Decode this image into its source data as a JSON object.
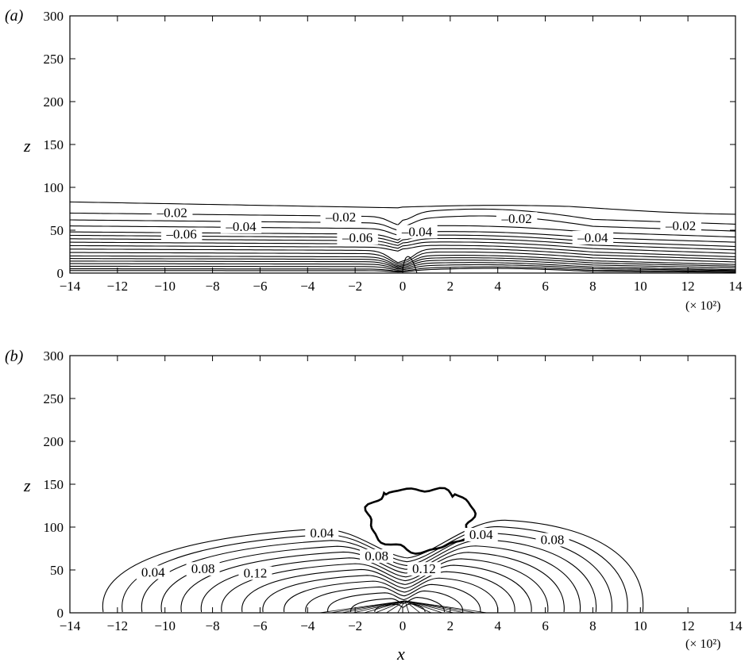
{
  "chart_data": [
    {
      "type": "contour",
      "panel_label": "(a)",
      "xlabel": "",
      "ylabel": "z",
      "x_multiplier": "(× 10²)",
      "xlim": [
        -14,
        14
      ],
      "ylim": [
        0,
        300
      ],
      "xticks": [
        -14,
        -12,
        -10,
        -8,
        -6,
        -4,
        -2,
        0,
        2,
        4,
        6,
        8,
        10,
        12,
        14
      ],
      "yticks": [
        0,
        50,
        100,
        150,
        200,
        250,
        300
      ],
      "contour_labels": [
        {
          "text": "–0.02",
          "x": -9.7,
          "z": 67
        },
        {
          "text": "–0.04",
          "x": -6.8,
          "z": 51
        },
        {
          "text": "–0.06",
          "x": -9.3,
          "z": 42
        },
        {
          "text": "–0.02",
          "x": -2.6,
          "z": 62
        },
        {
          "text": "–0.04",
          "x": 0.6,
          "z": 45
        },
        {
          "text": "–0.06",
          "x": -1.9,
          "z": 38
        },
        {
          "text": "–0.02",
          "x": 4.8,
          "z": 60
        },
        {
          "text": "–0.04",
          "x": 8.0,
          "z": 38
        },
        {
          "text": "–0.02",
          "x": 11.7,
          "z": 52
        }
      ]
    },
    {
      "type": "contour",
      "panel_label": "(b)",
      "xlabel": "x",
      "ylabel": "z",
      "x_multiplier": "(× 10²)",
      "xlim": [
        -14,
        14
      ],
      "ylim": [
        0,
        300
      ],
      "xticks": [
        -14,
        -12,
        -10,
        -8,
        -6,
        -4,
        -2,
        0,
        2,
        4,
        6,
        8,
        10,
        12,
        14
      ],
      "yticks": [
        0,
        50,
        100,
        150,
        200,
        250,
        300
      ],
      "contour_labels": [
        {
          "text": "0.04",
          "x": -3.4,
          "z": 90
        },
        {
          "text": "0.04",
          "x": -10.5,
          "z": 44
        },
        {
          "text": "0.08",
          "x": -8.4,
          "z": 48
        },
        {
          "text": "0.12",
          "x": -6.2,
          "z": 43
        },
        {
          "text": "0.08",
          "x": -1.1,
          "z": 63
        },
        {
          "text": "0.12",
          "x": 0.9,
          "z": 48
        },
        {
          "text": "0.04",
          "x": 3.3,
          "z": 88
        },
        {
          "text": "0.08",
          "x": 6.3,
          "z": 82
        }
      ]
    }
  ]
}
